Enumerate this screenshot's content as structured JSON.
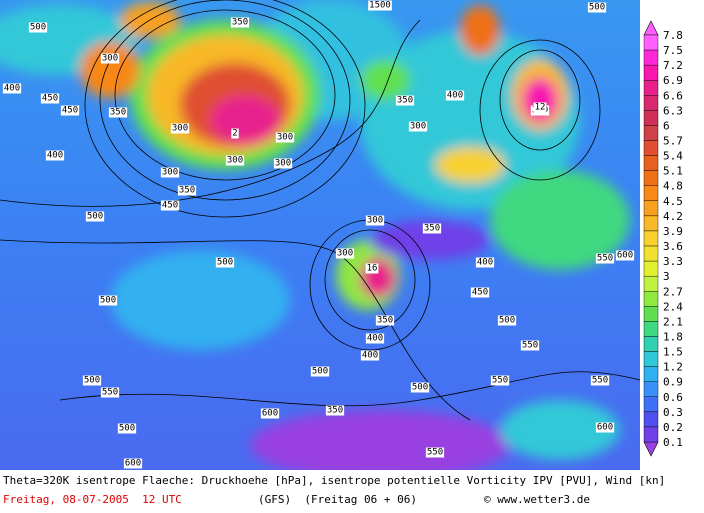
{
  "map": {
    "contour_labels": [
      "500",
      "300",
      "350",
      "1500",
      "500",
      "400",
      "450",
      "450",
      "300",
      "350",
      "300",
      "300",
      "2",
      "350",
      "400",
      "300",
      "350",
      "400",
      "300",
      "12",
      "350",
      "300",
      "450",
      "300",
      "400",
      "500",
      "350",
      "500",
      "350",
      "16",
      "300",
      "400",
      "550",
      "600",
      "500",
      "450",
      "500",
      "500",
      "550",
      "500",
      "550",
      "400",
      "350",
      "500",
      "550",
      "600",
      "550",
      "550",
      "500",
      "600",
      "600"
    ]
  },
  "colorbar": {
    "levels": [
      {
        "value": 7.8,
        "color": "#ff60ff"
      },
      {
        "value": 7.5,
        "color": "#ff28d8"
      },
      {
        "value": 7.2,
        "color": "#f818b0"
      },
      {
        "value": 6.9,
        "color": "#e8208c"
      },
      {
        "value": 6.6,
        "color": "#d82870"
      },
      {
        "value": 6.3,
        "color": "#d03058"
      },
      {
        "value": 6,
        "color": "#d04048"
      },
      {
        "value": 5.7,
        "color": "#e05030"
      },
      {
        "value": 5.4,
        "color": "#e86020"
      },
      {
        "value": 5.1,
        "color": "#f07018"
      },
      {
        "value": 4.8,
        "color": "#f88818"
      },
      {
        "value": 4.5,
        "color": "#f8a020"
      },
      {
        "value": 4.2,
        "color": "#f8b828"
      },
      {
        "value": 3.9,
        "color": "#f8d030"
      },
      {
        "value": 3.6,
        "color": "#f0e030"
      },
      {
        "value": 3.3,
        "color": "#e0f030"
      },
      {
        "value": 3,
        "color": "#c0f040"
      },
      {
        "value": 2.7,
        "color": "#90e840"
      },
      {
        "value": 2.4,
        "color": "#60e050"
      },
      {
        "value": 2.1,
        "color": "#40d880"
      },
      {
        "value": 1.8,
        "color": "#30d0b0"
      },
      {
        "value": 1.5,
        "color": "#30c8d8"
      },
      {
        "value": 1.2,
        "color": "#30b0f0"
      },
      {
        "value": 0.9,
        "color": "#3890f8"
      },
      {
        "value": 0.6,
        "color": "#4070f8"
      },
      {
        "value": 0.3,
        "color": "#5050f0"
      },
      {
        "value": 0.2,
        "color": "#7040e8"
      },
      {
        "value": 0.1,
        "color": "#9840e0"
      }
    ]
  },
  "footer": {
    "line1": "Theta=320K isentrope Flaeche: Druckhoehe [hPa], isentrope potentielle Vorticity IPV [PVU], Wind [kn]",
    "date": "Freitag, 08-07-2005  12 UTC",
    "model": "(GFS)  (Freitag 06 + 06)",
    "credit": "© www.wetter3.de"
  }
}
